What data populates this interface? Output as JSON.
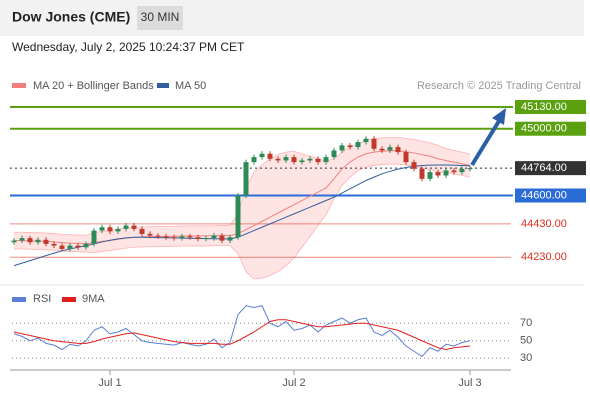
{
  "header": {
    "title": "Dow Jones (CME)",
    "timeframe": "30 MIN",
    "date": "Wednesday, July 2, 2025 10:24:37 PM CET"
  },
  "chart_data": [
    {
      "type": "candlestick",
      "annotation": "Research © 2025 Trading Central",
      "up_color": "#2e8b57",
      "down_color": "#c0392b",
      "ylim": [
        44070,
        45202
      ],
      "candles": [
        [
          44320,
          44345,
          44305,
          44330
        ],
        [
          44330,
          44360,
          44315,
          44345
        ],
        [
          44345,
          44360,
          44305,
          44320
        ],
        [
          44320,
          44350,
          44305,
          44335
        ],
        [
          44335,
          44350,
          44295,
          44310
        ],
        [
          44310,
          44325,
          44285,
          44300
        ],
        [
          44300,
          44315,
          44265,
          44280
        ],
        [
          44280,
          44315,
          44265,
          44300
        ],
        [
          44300,
          44315,
          44275,
          44290
        ],
        [
          44290,
          44325,
          44275,
          44310
        ],
        [
          44310,
          44405,
          44295,
          44390
        ],
        [
          44390,
          44425,
          44375,
          44410
        ],
        [
          44410,
          44425,
          44370,
          44385
        ],
        [
          44385,
          44415,
          44370,
          44400
        ],
        [
          44400,
          44435,
          44385,
          44420
        ],
        [
          44420,
          44435,
          44385,
          44400
        ],
        [
          44400,
          44415,
          44355,
          44370
        ],
        [
          44370,
          44385,
          44345,
          44360
        ],
        [
          44360,
          44375,
          44340,
          44355
        ],
        [
          44355,
          44370,
          44335,
          44350
        ],
        [
          44350,
          44365,
          44330,
          44345
        ],
        [
          44345,
          44370,
          44330,
          44355
        ],
        [
          44355,
          44370,
          44335,
          44350
        ],
        [
          44350,
          44365,
          44325,
          44340
        ],
        [
          44340,
          44360,
          44325,
          44345
        ],
        [
          44345,
          44375,
          44330,
          44360
        ],
        [
          44360,
          44375,
          44315,
          44330
        ],
        [
          44330,
          44365,
          44315,
          44350
        ],
        [
          44350,
          44615,
          44335,
          44600
        ],
        [
          44600,
          44815,
          44585,
          44800
        ],
        [
          44800,
          44845,
          44785,
          44830
        ],
        [
          44830,
          44865,
          44815,
          44850
        ],
        [
          44850,
          44865,
          44805,
          44820
        ],
        [
          44820,
          44835,
          44795,
          44810
        ],
        [
          44810,
          44845,
          44795,
          44830
        ],
        [
          44830,
          44845,
          44785,
          44800
        ],
        [
          44800,
          44825,
          44785,
          44810
        ],
        [
          44810,
          44835,
          44795,
          44820
        ],
        [
          44820,
          44835,
          44785,
          44800
        ],
        [
          44800,
          44845,
          44785,
          44830
        ],
        [
          44830,
          44885,
          44815,
          44870
        ],
        [
          44870,
          44915,
          44855,
          44900
        ],
        [
          44900,
          44915,
          44875,
          44890
        ],
        [
          44890,
          44935,
          44875,
          44920
        ],
        [
          44920,
          44955,
          44905,
          44940
        ],
        [
          44940,
          44955,
          44865,
          44880
        ],
        [
          44880,
          44895,
          44855,
          44870
        ],
        [
          44870,
          44905,
          44855,
          44890
        ],
        [
          44890,
          44905,
          44845,
          44860
        ],
        [
          44860,
          44875,
          44785,
          44800
        ],
        [
          44800,
          44815,
          44745,
          44760
        ],
        [
          44760,
          44775,
          44685,
          44700
        ],
        [
          44700,
          44755,
          44685,
          44740
        ],
        [
          44740,
          44755,
          44705,
          44720
        ],
        [
          44720,
          44765,
          44705,
          44750
        ],
        [
          44750,
          44765,
          44725,
          44740
        ],
        [
          44740,
          44775,
          44725,
          44760
        ],
        [
          44760,
          44779,
          44745,
          44764
        ]
      ],
      "series": [
        {
          "name": "MA 20 + Bollinger Bands",
          "color": "#f08080",
          "values": [
            44330,
            44330,
            44328,
            44327,
            44325,
            44322,
            44318,
            44315,
            44313,
            44312,
            44318,
            44325,
            44330,
            44338,
            44345,
            44350,
            44352,
            44353,
            44354,
            44355,
            44356,
            44357,
            44358,
            44358,
            44358,
            44359,
            44360,
            44360,
            44372,
            44395,
            44420,
            44445,
            44470,
            44495,
            44520,
            44545,
            44570,
            44595,
            44620,
            44645,
            44700,
            44760,
            44800,
            44830,
            44850,
            44860,
            44865,
            44868,
            44868,
            44862,
            44855,
            44845,
            44835,
            44820,
            44810,
            44800,
            44790,
            44780
          ]
        },
        {
          "name": "MA 50",
          "color": "#2f5f9e",
          "values": [
            44180,
            44195,
            44210,
            44225,
            44240,
            44255,
            44268,
            44280,
            44290,
            44300,
            44310,
            44322,
            44332,
            44340,
            44346,
            44350,
            44350,
            44349,
            44348,
            44347,
            44346,
            44345,
            44344,
            44343,
            44342,
            44341,
            44340,
            44340,
            44350,
            44370,
            44390,
            44410,
            44430,
            44450,
            44470,
            44490,
            44510,
            44530,
            44550,
            44570,
            44590,
            44615,
            44640,
            44665,
            44690,
            44710,
            44730,
            44745,
            44758,
            44768,
            44775,
            44780,
            44782,
            44783,
            44783,
            44782,
            44780,
            44778
          ]
        }
      ],
      "bands": {
        "color": "#ffb3b3",
        "upper": [
          44380,
          44380,
          44378,
          44377,
          44375,
          44372,
          44368,
          44365,
          44363,
          44362,
          44378,
          44385,
          44390,
          44398,
          44405,
          44410,
          44412,
          44413,
          44414,
          44415,
          44416,
          44417,
          44418,
          44418,
          44418,
          44419,
          44420,
          44420,
          44492,
          44645,
          44740,
          44785,
          44820,
          44845,
          44860,
          44865,
          44850,
          44835,
          44820,
          44805,
          44820,
          44860,
          44890,
          44910,
          44930,
          44940,
          44945,
          44948,
          44948,
          44942,
          44935,
          44925,
          44915,
          44900,
          44880,
          44870,
          44860,
          44850
        ],
        "lower": [
          44280,
          44280,
          44278,
          44277,
          44275,
          44272,
          44268,
          44265,
          44263,
          44262,
          44258,
          44265,
          44270,
          44278,
          44285,
          44290,
          44292,
          44293,
          44294,
          44295,
          44296,
          44297,
          44298,
          44298,
          44298,
          44299,
          44300,
          44300,
          44252,
          44145,
          44100,
          44105,
          44120,
          44145,
          44180,
          44225,
          44290,
          44355,
          44420,
          44485,
          44580,
          44660,
          44710,
          44750,
          44770,
          44780,
          44785,
          44788,
          44788,
          44782,
          44775,
          44765,
          44755,
          44740,
          44740,
          44730,
          44720,
          44710
        ]
      },
      "levels": [
        {
          "value": 45130,
          "label": "45130.00",
          "color": "#5aa00f",
          "boxed": true,
          "dotted": false
        },
        {
          "value": 45000,
          "label": "45000.00",
          "color": "#5aa00f",
          "boxed": true,
          "dotted": false
        },
        {
          "value": 44764,
          "label": "44764.00",
          "color": "#333333",
          "boxed": true,
          "dotted": true
        },
        {
          "value": 44600,
          "label": "44600.00",
          "color": "#2b6bd6",
          "boxed": true,
          "dotted": false
        },
        {
          "value": 44430,
          "label": "44430.00",
          "color": "#e0301e",
          "boxed": false,
          "dotted": false
        },
        {
          "value": 44230,
          "label": "44230.00",
          "color": "#e0301e",
          "boxed": false,
          "dotted": false
        }
      ]
    },
    {
      "type": "line",
      "ylim": [
        20,
        100
      ],
      "yticks": [
        70,
        50,
        30
      ],
      "grid": true,
      "categories": [
        null,
        null,
        null,
        null,
        null,
        null,
        null,
        null,
        null,
        null,
        null,
        null,
        "Jul 1",
        null,
        null,
        null,
        null,
        null,
        null,
        null,
        null,
        null,
        null,
        null,
        null,
        null,
        null,
        null,
        null,
        null,
        null,
        null,
        null,
        null,
        null,
        "Jul 2",
        null,
        null,
        null,
        null,
        null,
        null,
        null,
        null,
        null,
        null,
        null,
        null,
        null,
        null,
        null,
        null,
        null,
        null,
        null,
        null,
        null,
        "Jul 3"
      ],
      "series": [
        {
          "name": "RSI",
          "color": "#5b7fd6",
          "values": [
            58,
            55,
            50,
            53,
            47,
            45,
            40,
            46,
            44,
            50,
            62,
            66,
            58,
            60,
            64,
            57,
            50,
            48,
            47,
            46,
            45,
            48,
            46,
            44,
            46,
            52,
            42,
            48,
            80,
            90,
            88,
            90,
            70,
            66,
            72,
            62,
            64,
            68,
            60,
            68,
            72,
            76,
            70,
            74,
            76,
            60,
            56,
            62,
            54,
            44,
            38,
            32,
            42,
            38,
            46,
            44,
            48,
            50
          ]
        },
        {
          "name": "9MA",
          "color": "#e02020",
          "values": [
            60,
            58,
            56,
            54,
            52,
            50,
            49,
            48,
            47,
            47,
            49,
            52,
            54,
            56,
            58,
            59,
            57,
            55,
            53,
            51,
            49,
            48,
            47,
            47,
            47,
            47,
            46,
            46,
            50,
            55,
            60,
            66,
            72,
            74,
            74,
            72,
            70,
            68,
            66,
            66,
            67,
            68,
            69,
            70,
            70,
            68,
            66,
            64,
            62,
            58,
            54,
            50,
            46,
            42,
            40,
            42,
            43,
            44
          ]
        }
      ]
    }
  ]
}
